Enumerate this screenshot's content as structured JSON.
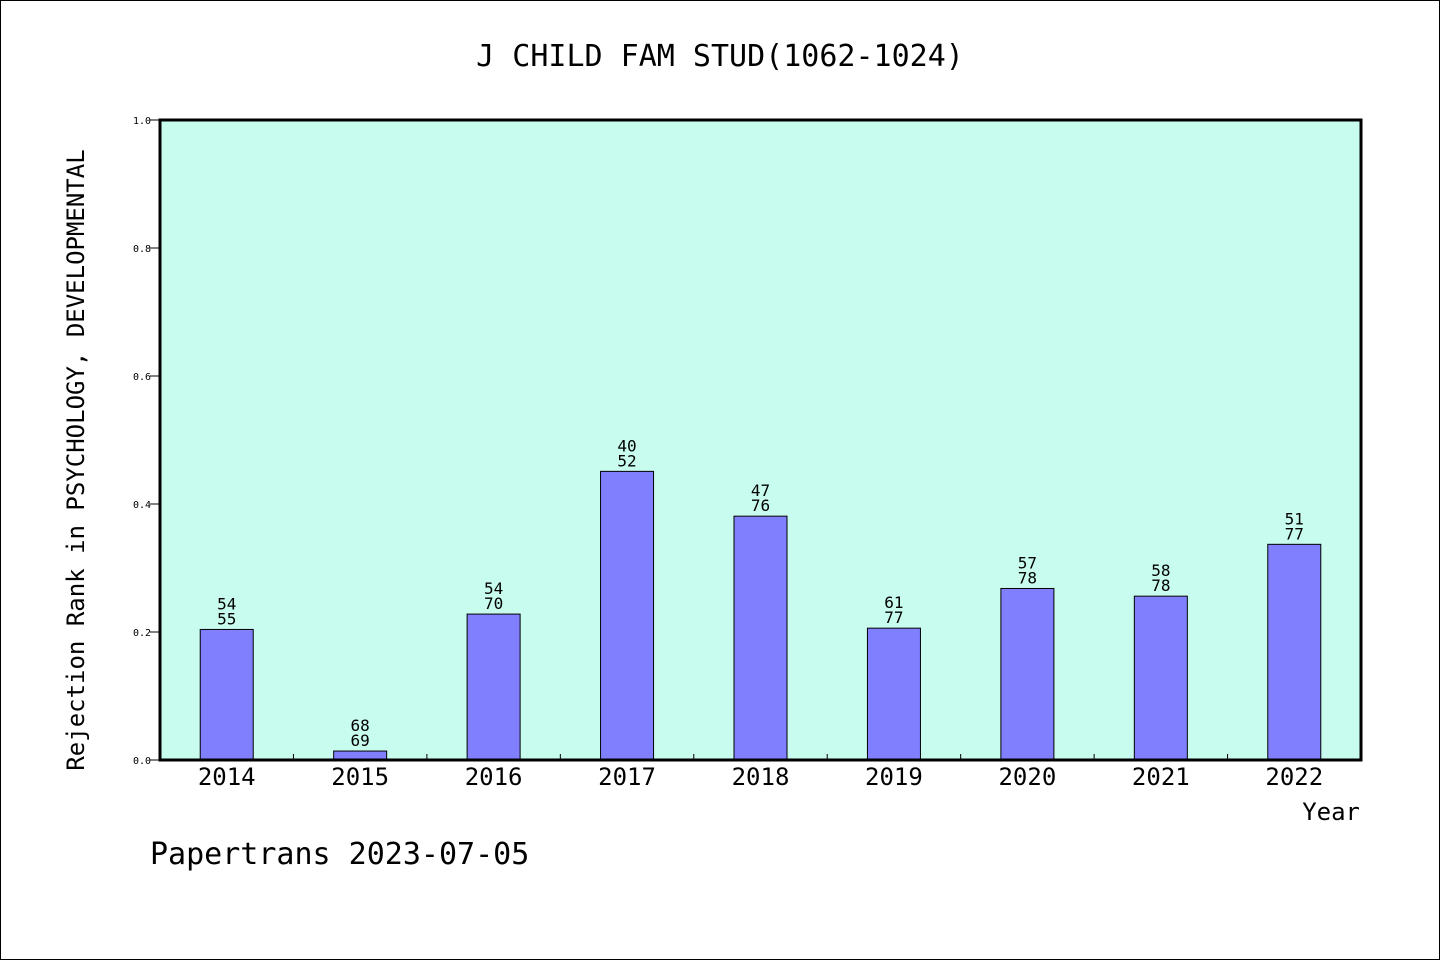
{
  "chart_data": {
    "type": "bar",
    "title": "J CHILD FAM STUD(1062-1024)",
    "xlabel": "Year",
    "ylabel": "Rejection Rank in PSYCHOLOGY, DEVELOPMENTAL",
    "ylim": [
      0.0,
      1.0
    ],
    "yticks": [
      "0.0",
      "0.2",
      "0.4",
      "0.6",
      "0.8",
      "1.0"
    ],
    "categories": [
      "2014",
      "2015",
      "2016",
      "2017",
      "2018",
      "2019",
      "2020",
      "2021",
      "2022"
    ],
    "values": [
      0.204,
      0.014,
      0.228,
      0.451,
      0.381,
      0.206,
      0.268,
      0.256,
      0.337
    ],
    "labels_top": [
      "54",
      "68",
      "54",
      "40",
      "47",
      "61",
      "57",
      "58",
      "51"
    ],
    "labels_bottom": [
      "55",
      "69",
      "70",
      "52",
      "76",
      "77",
      "78",
      "78",
      "77"
    ],
    "grid": false,
    "plot_background": "#c8fcee",
    "bar_color": "#8080ff"
  },
  "footer": "Papertrans 2023-07-05"
}
